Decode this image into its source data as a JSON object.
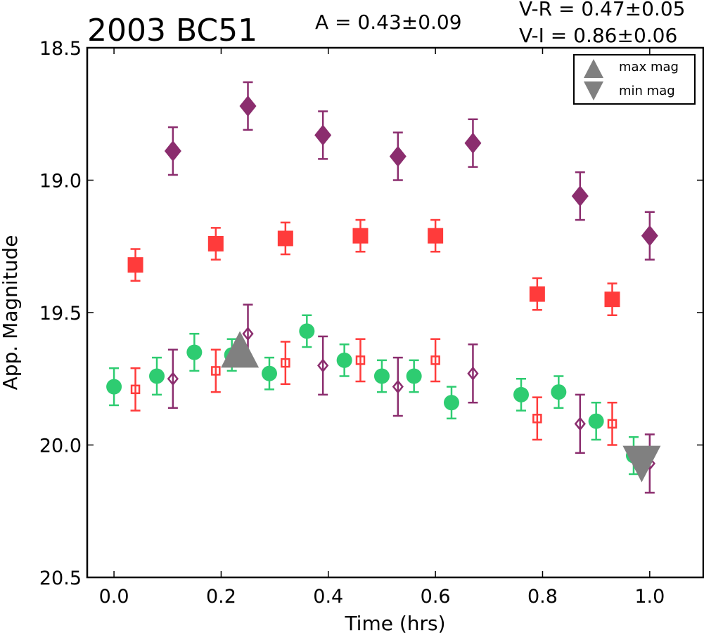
{
  "chart_data": {
    "type": "scatter",
    "title": "2003 BC51",
    "annotations": {
      "amplitude": "A  = 0.43±0.09",
      "v_r": "V-R = 0.47±0.05",
      "v_i": "V-I  = 0.86±0.06"
    },
    "xlabel": "Time (hrs)",
    "ylabel": "App. Magnitude",
    "xlim": [
      -0.05,
      1.1
    ],
    "ylim": [
      20.5,
      18.5
    ],
    "y_inverted": true,
    "xticks": [
      0.0,
      0.2,
      0.4,
      0.6,
      0.8,
      1.0
    ],
    "xtick_labels": [
      "0.0",
      "0.2",
      "0.4",
      "0.6",
      "0.8",
      "1.0"
    ],
    "yticks": [
      18.5,
      19.0,
      19.5,
      20.0,
      20.5
    ],
    "ytick_labels": [
      "18.5",
      "19.0",
      "19.5",
      "20.0",
      "20.5"
    ],
    "grid": false,
    "legend_position": "top-right",
    "legend": [
      {
        "label": "max mag",
        "marker": "triangle-up",
        "color": "#808080"
      },
      {
        "label": "min mag",
        "marker": "triangle-down",
        "color": "#808080"
      }
    ],
    "series": [
      {
        "marker": "circle",
        "color": "#2ecc71",
        "filled": true,
        "points": [
          {
            "x": 0.0,
            "y": 19.78,
            "err": 0.07
          },
          {
            "x": 0.08,
            "y": 19.74,
            "err": 0.07
          },
          {
            "x": 0.15,
            "y": 19.65,
            "err": 0.07
          },
          {
            "x": 0.22,
            "y": 19.66,
            "err": 0.06
          },
          {
            "x": 0.29,
            "y": 19.73,
            "err": 0.06
          },
          {
            "x": 0.36,
            "y": 19.57,
            "err": 0.06
          },
          {
            "x": 0.43,
            "y": 19.68,
            "err": 0.06
          },
          {
            "x": 0.5,
            "y": 19.74,
            "err": 0.06
          },
          {
            "x": 0.56,
            "y": 19.74,
            "err": 0.06
          },
          {
            "x": 0.63,
            "y": 19.84,
            "err": 0.06
          },
          {
            "x": 0.76,
            "y": 19.81,
            "err": 0.06
          },
          {
            "x": 0.83,
            "y": 19.8,
            "err": 0.06
          },
          {
            "x": 0.9,
            "y": 19.91,
            "err": 0.07
          },
          {
            "x": 0.97,
            "y": 20.04,
            "err": 0.07
          }
        ]
      },
      {
        "marker": "square",
        "color": "#ff3b3b",
        "filled": false,
        "points": [
          {
            "x": 0.04,
            "y": 19.79,
            "err": 0.08
          },
          {
            "x": 0.19,
            "y": 19.72,
            "err": 0.08
          },
          {
            "x": 0.32,
            "y": 19.69,
            "err": 0.08
          },
          {
            "x": 0.46,
            "y": 19.68,
            "err": 0.08
          },
          {
            "x": 0.6,
            "y": 19.68,
            "err": 0.08
          },
          {
            "x": 0.79,
            "y": 19.9,
            "err": 0.08
          },
          {
            "x": 0.93,
            "y": 19.92,
            "err": 0.08
          }
        ]
      },
      {
        "marker": "diamond",
        "color": "#8b2d6e",
        "filled": false,
        "points": [
          {
            "x": 0.11,
            "y": 19.75,
            "err": 0.11
          },
          {
            "x": 0.25,
            "y": 19.58,
            "err": 0.11
          },
          {
            "x": 0.39,
            "y": 19.7,
            "err": 0.11
          },
          {
            "x": 0.53,
            "y": 19.78,
            "err": 0.11
          },
          {
            "x": 0.67,
            "y": 19.73,
            "err": 0.11
          },
          {
            "x": 0.87,
            "y": 19.92,
            "err": 0.11
          },
          {
            "x": 1.0,
            "y": 20.07,
            "err": 0.11
          }
        ]
      },
      {
        "marker": "square",
        "color": "#ff3b3b",
        "filled": true,
        "points": [
          {
            "x": 0.04,
            "y": 19.32,
            "err": 0.06
          },
          {
            "x": 0.19,
            "y": 19.24,
            "err": 0.06
          },
          {
            "x": 0.32,
            "y": 19.22,
            "err": 0.06
          },
          {
            "x": 0.46,
            "y": 19.21,
            "err": 0.06
          },
          {
            "x": 0.6,
            "y": 19.21,
            "err": 0.06
          },
          {
            "x": 0.79,
            "y": 19.43,
            "err": 0.06
          },
          {
            "x": 0.93,
            "y": 19.45,
            "err": 0.06
          }
        ]
      },
      {
        "marker": "diamond",
        "color": "#8b2d6e",
        "filled": true,
        "points": [
          {
            "x": 0.11,
            "y": 18.89,
            "err": 0.09
          },
          {
            "x": 0.25,
            "y": 18.72,
            "err": 0.09
          },
          {
            "x": 0.39,
            "y": 18.83,
            "err": 0.09
          },
          {
            "x": 0.53,
            "y": 18.91,
            "err": 0.09
          },
          {
            "x": 0.67,
            "y": 18.86,
            "err": 0.09
          },
          {
            "x": 0.87,
            "y": 19.06,
            "err": 0.09
          },
          {
            "x": 1.0,
            "y": 19.21,
            "err": 0.09
          }
        ]
      }
    ],
    "extrema": [
      {
        "label": "max mag",
        "marker": "triangle-up",
        "color": "#808080",
        "x": 0.235,
        "y": 19.66
      },
      {
        "label": "min mag",
        "marker": "triangle-down",
        "color": "#808080",
        "x": 0.985,
        "y": 20.04
      }
    ]
  }
}
